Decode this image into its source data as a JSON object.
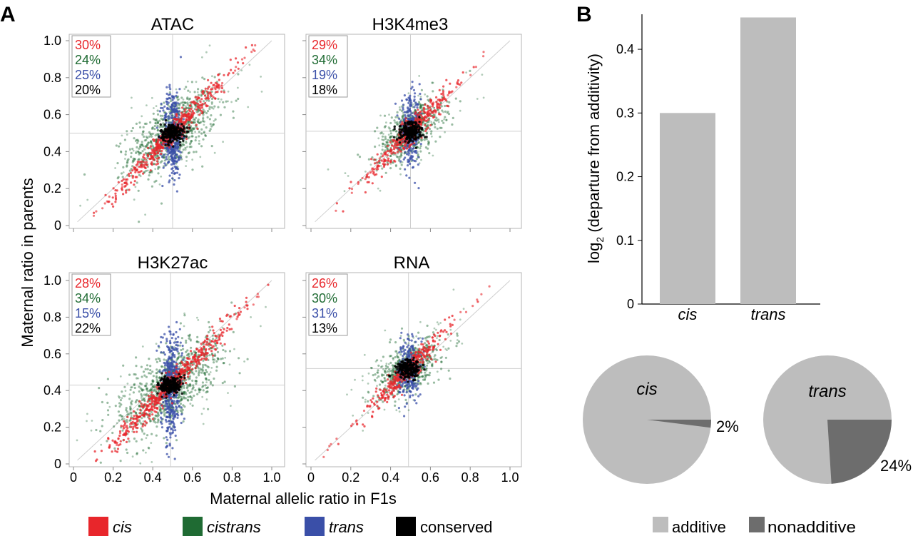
{
  "panels": {
    "a_label": "A",
    "b_label": "B"
  },
  "scatter": {
    "ylabel": "Maternal ratio in parents",
    "xlabel": "Maternal allelic ratio in F1s",
    "x_ticks": [
      "0",
      "0.2",
      "0.4",
      "0.6",
      "0.8",
      "1.0"
    ],
    "y_ticks": [
      "0",
      "0.2",
      "0.4",
      "0.6",
      "0.8",
      "1.0"
    ],
    "colors": {
      "cis": "#e8262b",
      "cistrans": "#1f6b33",
      "trans": "#3a4fa8",
      "conserved": "#000000"
    },
    "legend": [
      {
        "key": "cis",
        "label": "cis",
        "italic": true
      },
      {
        "key": "cistrans",
        "label": "cistrans",
        "italic": true
      },
      {
        "key": "trans",
        "label": "trans",
        "italic": true
      },
      {
        "key": "conserved",
        "label": "conserved",
        "italic": false
      }
    ]
  },
  "chart_data": [
    {
      "type": "scatter",
      "title": "ATAC",
      "xlim": [
        0,
        1
      ],
      "ylim": [
        0,
        1
      ],
      "center": [
        0.5,
        0.5
      ],
      "spread": 1.0,
      "percentages": {
        "cis": "30%",
        "cistrans": "24%",
        "trans": "25%",
        "conserved": "20%"
      }
    },
    {
      "type": "scatter",
      "title": "H3K4me3",
      "xlim": [
        0,
        1
      ],
      "ylim": [
        0,
        1
      ],
      "center": [
        0.5,
        0.51
      ],
      "spread": 0.75,
      "percentages": {
        "cis": "29%",
        "cistrans": "34%",
        "trans": "19%",
        "conserved": "18%"
      }
    },
    {
      "type": "scatter",
      "title": "H3K27ac",
      "xlim": [
        0,
        1
      ],
      "ylim": [
        0,
        1
      ],
      "center": [
        0.49,
        0.43
      ],
      "spread": 1.15,
      "percentages": {
        "cis": "28%",
        "cistrans": "34%",
        "trans": "15%",
        "conserved": "22%"
      }
    },
    {
      "type": "scatter",
      "title": "RNA",
      "xlim": [
        0,
        1
      ],
      "ylim": [
        0,
        1
      ],
      "center": [
        0.49,
        0.52
      ],
      "spread": 0.7,
      "percentages": {
        "cis": "26%",
        "cistrans": "30%",
        "trans": "31%",
        "conserved": "13%"
      }
    },
    {
      "type": "bar",
      "categories": [
        "cis",
        "trans"
      ],
      "values": [
        0.3,
        0.45
      ],
      "ylabel_main": "log",
      "ylabel_sub": "2",
      "ylabel_rest": " (departure from additivity)",
      "ylim": [
        0,
        0.45
      ],
      "y_ticks": [
        "0",
        "0.1",
        "0.2",
        "0.3",
        "0.4"
      ],
      "color": "#bdbdbd"
    },
    {
      "type": "pie",
      "title": "cis",
      "slices": [
        {
          "name": "additive",
          "value": 98
        },
        {
          "name": "nonadditive",
          "value": 2,
          "label": "2%"
        }
      ]
    },
    {
      "type": "pie",
      "title": "trans",
      "slices": [
        {
          "name": "additive",
          "value": 76
        },
        {
          "name": "nonadditive",
          "value": 24,
          "label": "24%"
        }
      ]
    }
  ],
  "pie_legend": [
    {
      "key": "additive",
      "label": "additive",
      "color": "#bdbdbd"
    },
    {
      "key": "nonadditive",
      "label": "nonadditive",
      "color": "#6d6d6d"
    }
  ]
}
